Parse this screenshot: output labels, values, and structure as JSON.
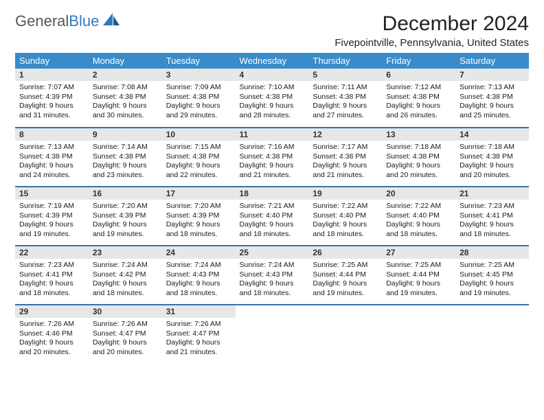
{
  "logo": {
    "text_gray": "General",
    "text_blue": "Blue"
  },
  "title": "December 2024",
  "location": "Fivepointville, Pennsylvania, United States",
  "colors": {
    "header_bg": "#3a8bc9",
    "header_text": "#ffffff",
    "daynum_bg": "#e7e7e7",
    "row_divider": "#3a6fa8",
    "logo_gray": "#555555",
    "logo_blue": "#2f7bbf",
    "body_text": "#1a1a1a",
    "page_bg": "#ffffff"
  },
  "typography": {
    "title_fontsize": 30,
    "subtitle_fontsize": 15,
    "header_fontsize": 13,
    "daynum_fontsize": 12,
    "body_fontsize": 10.5,
    "font_family": "Arial"
  },
  "weekdays": [
    "Sunday",
    "Monday",
    "Tuesday",
    "Wednesday",
    "Thursday",
    "Friday",
    "Saturday"
  ],
  "weeks": [
    [
      {
        "num": "1",
        "sunrise": "Sunrise: 7:07 AM",
        "sunset": "Sunset: 4:39 PM",
        "day1": "Daylight: 9 hours",
        "day2": "and 31 minutes."
      },
      {
        "num": "2",
        "sunrise": "Sunrise: 7:08 AM",
        "sunset": "Sunset: 4:38 PM",
        "day1": "Daylight: 9 hours",
        "day2": "and 30 minutes."
      },
      {
        "num": "3",
        "sunrise": "Sunrise: 7:09 AM",
        "sunset": "Sunset: 4:38 PM",
        "day1": "Daylight: 9 hours",
        "day2": "and 29 minutes."
      },
      {
        "num": "4",
        "sunrise": "Sunrise: 7:10 AM",
        "sunset": "Sunset: 4:38 PM",
        "day1": "Daylight: 9 hours",
        "day2": "and 28 minutes."
      },
      {
        "num": "5",
        "sunrise": "Sunrise: 7:11 AM",
        "sunset": "Sunset: 4:38 PM",
        "day1": "Daylight: 9 hours",
        "day2": "and 27 minutes."
      },
      {
        "num": "6",
        "sunrise": "Sunrise: 7:12 AM",
        "sunset": "Sunset: 4:38 PM",
        "day1": "Daylight: 9 hours",
        "day2": "and 26 minutes."
      },
      {
        "num": "7",
        "sunrise": "Sunrise: 7:13 AM",
        "sunset": "Sunset: 4:38 PM",
        "day1": "Daylight: 9 hours",
        "day2": "and 25 minutes."
      }
    ],
    [
      {
        "num": "8",
        "sunrise": "Sunrise: 7:13 AM",
        "sunset": "Sunset: 4:38 PM",
        "day1": "Daylight: 9 hours",
        "day2": "and 24 minutes."
      },
      {
        "num": "9",
        "sunrise": "Sunrise: 7:14 AM",
        "sunset": "Sunset: 4:38 PM",
        "day1": "Daylight: 9 hours",
        "day2": "and 23 minutes."
      },
      {
        "num": "10",
        "sunrise": "Sunrise: 7:15 AM",
        "sunset": "Sunset: 4:38 PM",
        "day1": "Daylight: 9 hours",
        "day2": "and 22 minutes."
      },
      {
        "num": "11",
        "sunrise": "Sunrise: 7:16 AM",
        "sunset": "Sunset: 4:38 PM",
        "day1": "Daylight: 9 hours",
        "day2": "and 21 minutes."
      },
      {
        "num": "12",
        "sunrise": "Sunrise: 7:17 AM",
        "sunset": "Sunset: 4:38 PM",
        "day1": "Daylight: 9 hours",
        "day2": "and 21 minutes."
      },
      {
        "num": "13",
        "sunrise": "Sunrise: 7:18 AM",
        "sunset": "Sunset: 4:38 PM",
        "day1": "Daylight: 9 hours",
        "day2": "and 20 minutes."
      },
      {
        "num": "14",
        "sunrise": "Sunrise: 7:18 AM",
        "sunset": "Sunset: 4:38 PM",
        "day1": "Daylight: 9 hours",
        "day2": "and 20 minutes."
      }
    ],
    [
      {
        "num": "15",
        "sunrise": "Sunrise: 7:19 AM",
        "sunset": "Sunset: 4:39 PM",
        "day1": "Daylight: 9 hours",
        "day2": "and 19 minutes."
      },
      {
        "num": "16",
        "sunrise": "Sunrise: 7:20 AM",
        "sunset": "Sunset: 4:39 PM",
        "day1": "Daylight: 9 hours",
        "day2": "and 19 minutes."
      },
      {
        "num": "17",
        "sunrise": "Sunrise: 7:20 AM",
        "sunset": "Sunset: 4:39 PM",
        "day1": "Daylight: 9 hours",
        "day2": "and 18 minutes."
      },
      {
        "num": "18",
        "sunrise": "Sunrise: 7:21 AM",
        "sunset": "Sunset: 4:40 PM",
        "day1": "Daylight: 9 hours",
        "day2": "and 18 minutes."
      },
      {
        "num": "19",
        "sunrise": "Sunrise: 7:22 AM",
        "sunset": "Sunset: 4:40 PM",
        "day1": "Daylight: 9 hours",
        "day2": "and 18 minutes."
      },
      {
        "num": "20",
        "sunrise": "Sunrise: 7:22 AM",
        "sunset": "Sunset: 4:40 PM",
        "day1": "Daylight: 9 hours",
        "day2": "and 18 minutes."
      },
      {
        "num": "21",
        "sunrise": "Sunrise: 7:23 AM",
        "sunset": "Sunset: 4:41 PM",
        "day1": "Daylight: 9 hours",
        "day2": "and 18 minutes."
      }
    ],
    [
      {
        "num": "22",
        "sunrise": "Sunrise: 7:23 AM",
        "sunset": "Sunset: 4:41 PM",
        "day1": "Daylight: 9 hours",
        "day2": "and 18 minutes."
      },
      {
        "num": "23",
        "sunrise": "Sunrise: 7:24 AM",
        "sunset": "Sunset: 4:42 PM",
        "day1": "Daylight: 9 hours",
        "day2": "and 18 minutes."
      },
      {
        "num": "24",
        "sunrise": "Sunrise: 7:24 AM",
        "sunset": "Sunset: 4:43 PM",
        "day1": "Daylight: 9 hours",
        "day2": "and 18 minutes."
      },
      {
        "num": "25",
        "sunrise": "Sunrise: 7:24 AM",
        "sunset": "Sunset: 4:43 PM",
        "day1": "Daylight: 9 hours",
        "day2": "and 18 minutes."
      },
      {
        "num": "26",
        "sunrise": "Sunrise: 7:25 AM",
        "sunset": "Sunset: 4:44 PM",
        "day1": "Daylight: 9 hours",
        "day2": "and 19 minutes."
      },
      {
        "num": "27",
        "sunrise": "Sunrise: 7:25 AM",
        "sunset": "Sunset: 4:44 PM",
        "day1": "Daylight: 9 hours",
        "day2": "and 19 minutes."
      },
      {
        "num": "28",
        "sunrise": "Sunrise: 7:25 AM",
        "sunset": "Sunset: 4:45 PM",
        "day1": "Daylight: 9 hours",
        "day2": "and 19 minutes."
      }
    ],
    [
      {
        "num": "29",
        "sunrise": "Sunrise: 7:26 AM",
        "sunset": "Sunset: 4:46 PM",
        "day1": "Daylight: 9 hours",
        "day2": "and 20 minutes."
      },
      {
        "num": "30",
        "sunrise": "Sunrise: 7:26 AM",
        "sunset": "Sunset: 4:47 PM",
        "day1": "Daylight: 9 hours",
        "day2": "and 20 minutes."
      },
      {
        "num": "31",
        "sunrise": "Sunrise: 7:26 AM",
        "sunset": "Sunset: 4:47 PM",
        "day1": "Daylight: 9 hours",
        "day2": "and 21 minutes."
      },
      {
        "empty": true
      },
      {
        "empty": true
      },
      {
        "empty": true
      },
      {
        "empty": true
      }
    ]
  ]
}
